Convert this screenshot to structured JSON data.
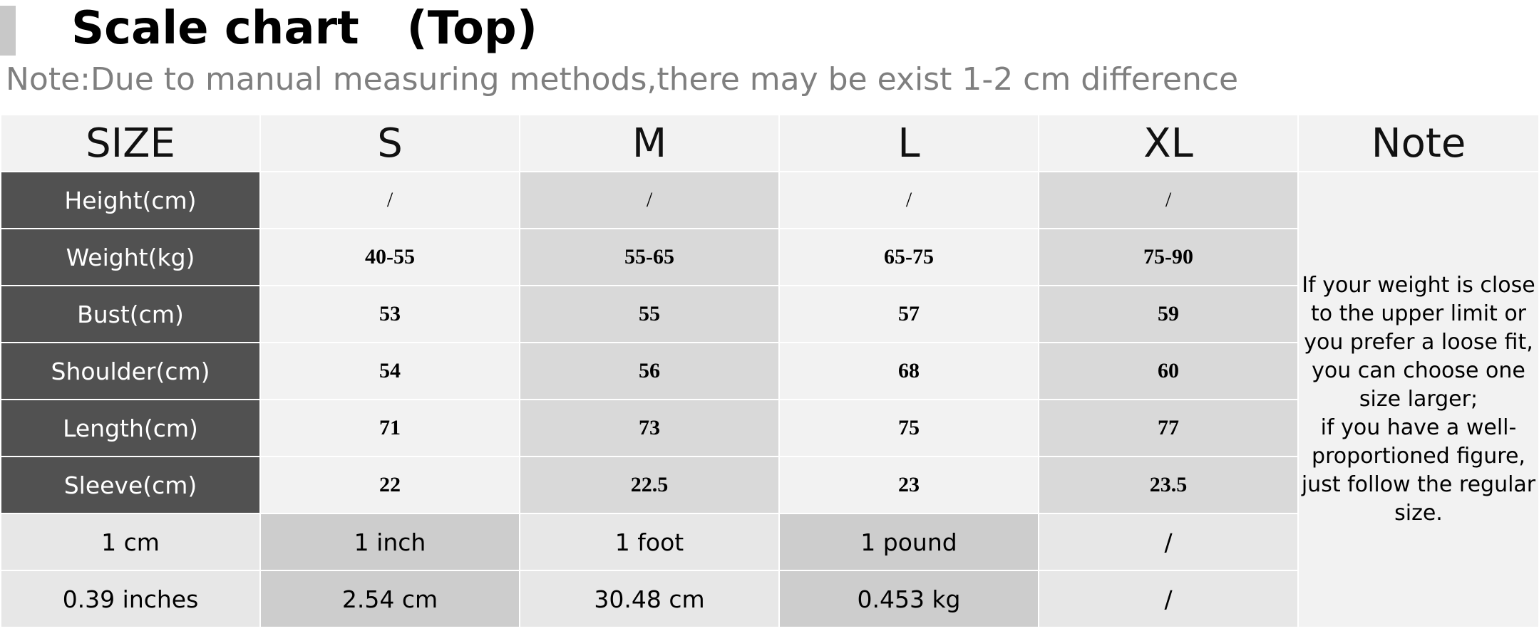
{
  "header": {
    "title": "Scale chart   (Top)",
    "note": "Note:Due to manual measuring methods,there may be exist 1-2 cm difference"
  },
  "table": {
    "columns": [
      "SIZE",
      "S",
      "M",
      "L",
      "XL",
      "Note"
    ],
    "rows": [
      {
        "label": "Height(cm)",
        "values": [
          "/",
          "/",
          "/",
          "/"
        ]
      },
      {
        "label": "Weight(kg)",
        "values": [
          "40-55",
          "55-65",
          "65-75",
          "75-90"
        ]
      },
      {
        "label": "Bust(cm)",
        "values": [
          "53",
          "55",
          "57",
          "59"
        ]
      },
      {
        "label": "Shoulder(cm)",
        "values": [
          "54",
          "56",
          "68",
          "60"
        ]
      },
      {
        "label": "Length(cm)",
        "values": [
          "71",
          "73",
          "75",
          "77"
        ]
      },
      {
        "label": "Sleeve(cm)",
        "values": [
          "22",
          "22.5",
          "23",
          "23.5"
        ]
      }
    ],
    "conversions": [
      [
        "1 cm",
        "1 inch",
        "1 foot",
        "1 pound",
        "/"
      ],
      [
        "0.39 inches",
        "2.54 cm",
        "30.48 cm",
        "0.453 kg",
        "/"
      ]
    ],
    "note_lines": [
      "If your weight is close",
      "to the upper limit or",
      "you prefer a loose fit,",
      "you can choose one",
      "size larger;",
      "if you have a well-",
      "proportioned figure,",
      "just follow the regular",
      "size."
    ]
  },
  "colors": {
    "label_bg": "#515151",
    "header_bg": "#f2f2f2",
    "cell_light": "#f2f2f2",
    "cell_mid": "#d9d9d9",
    "note_text": "#7f7f7f"
  }
}
